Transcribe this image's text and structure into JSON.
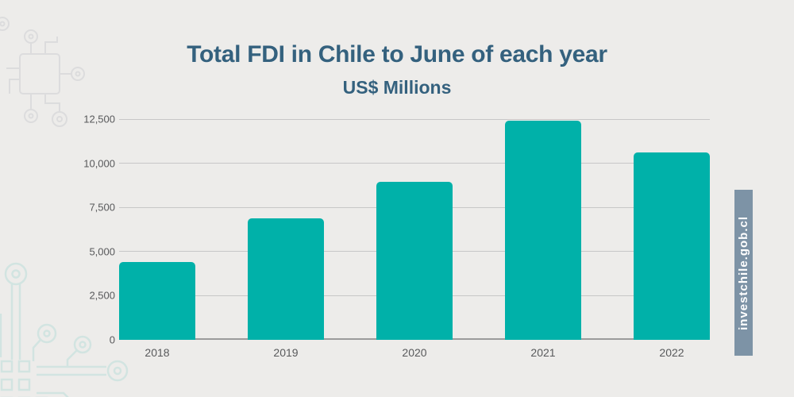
{
  "page": {
    "background_color": "#edecea"
  },
  "chart_data": {
    "type": "bar",
    "title": "Total FDI in Chile to June of each year",
    "subtitle": "US$ Millions",
    "categories": [
      "2018",
      "2019",
      "2020",
      "2021",
      "2022"
    ],
    "values": [
      4420,
      6890,
      8950,
      12430,
      10620
    ],
    "xlabel": "",
    "ylabel": "",
    "ylim": [
      0,
      12500
    ],
    "yticks": [
      0,
      2500,
      5000,
      7500,
      10000,
      12500
    ],
    "ytick_labels": [
      "0",
      "2,500",
      "5,000",
      "7,500",
      "10,000",
      "12,500"
    ],
    "grid": true,
    "legend": false,
    "colors": {
      "bar": "#00b1a9",
      "title": "#34617e",
      "axis_labels": "#58595b",
      "gridline": "#c7c7c7",
      "baseline": "#9b9b9b"
    }
  },
  "footer": {
    "website": "investchile.gob.cl",
    "band_color": "#7d93a6",
    "text_color": "#ffffff"
  },
  "decor": {
    "top_left": "circuit-chip-icon",
    "bottom_left": "circuit-traces-icon",
    "top_left_color": "#dcdcdd",
    "bottom_left_color": "#d2e4e1"
  }
}
